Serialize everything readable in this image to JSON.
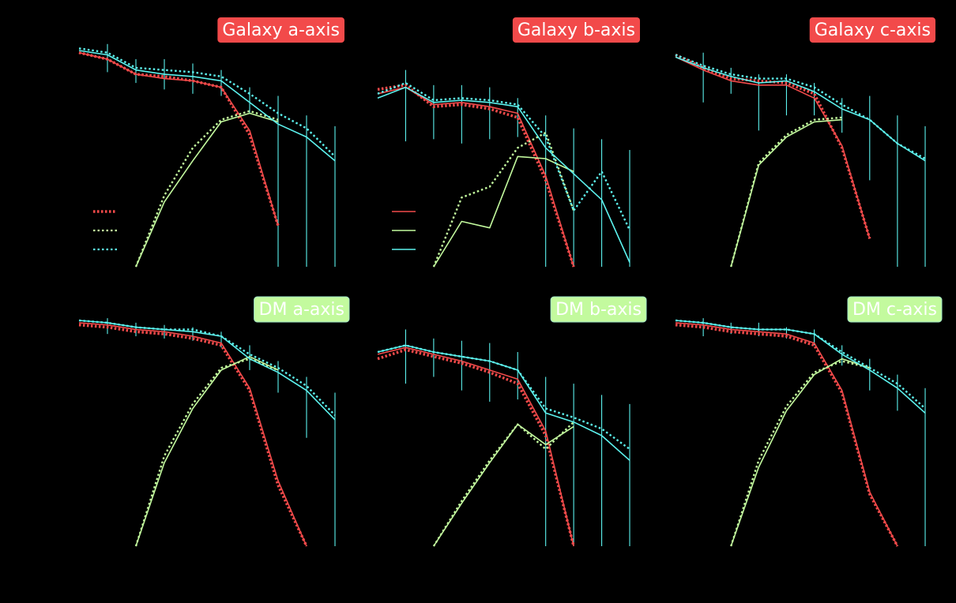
{
  "colors": {
    "background": "#000000",
    "red": "#f24a4a",
    "green": "#c3fa9e",
    "cyan": "#5cf2ee",
    "title_text": "#ffffff"
  },
  "chart_data": [
    {
      "type": "line",
      "title": "Galaxy a-axis",
      "title_color": "red",
      "legend": "dotted",
      "x": [
        0,
        1,
        2,
        3,
        4,
        5,
        6,
        7,
        8,
        9
      ],
      "ylim": [
        0,
        1
      ],
      "series": [
        {
          "color": "red",
          "style": "solid",
          "values": [
            0.99,
            0.96,
            0.89,
            0.87,
            0.86,
            0.83,
            0.63,
            0.19,
            null,
            null
          ]
        },
        {
          "color": "red",
          "style": "dotted",
          "values": [
            0.99,
            0.96,
            0.89,
            0.88,
            0.86,
            0.83,
            0.61,
            0.19,
            null,
            null
          ]
        },
        {
          "color": "green",
          "style": "solid",
          "values": [
            null,
            null,
            0.0,
            0.3,
            0.49,
            0.67,
            0.71,
            0.67,
            null,
            null
          ]
        },
        {
          "color": "green",
          "style": "dotted",
          "values": [
            null,
            null,
            0.0,
            0.33,
            0.55,
            0.68,
            0.72,
            0.68,
            null,
            null
          ]
        },
        {
          "color": "cyan",
          "style": "solid",
          "values": [
            1.0,
            0.98,
            0.91,
            0.89,
            0.88,
            0.86,
            0.76,
            0.66,
            0.6,
            0.49
          ]
        },
        {
          "color": "cyan",
          "style": "dotted",
          "values": [
            1.01,
            0.99,
            0.92,
            0.91,
            0.9,
            0.88,
            0.8,
            0.71,
            0.64,
            0.51
          ]
        }
      ],
      "errorbars": [
        {
          "x": 1,
          "lo": 0.9,
          "hi": 1.03
        },
        {
          "x": 2,
          "lo": 0.85,
          "hi": 0.96
        },
        {
          "x": 3,
          "lo": 0.82,
          "hi": 0.96
        },
        {
          "x": 4,
          "lo": 0.8,
          "hi": 0.94
        },
        {
          "x": 5,
          "lo": 0.79,
          "hi": 0.91
        },
        {
          "x": 6,
          "lo": 0.71,
          "hi": 0.83
        },
        {
          "x": 7,
          "lo": 0.0,
          "hi": 0.79
        },
        {
          "x": 8,
          "lo": 0.0,
          "hi": 0.7
        },
        {
          "x": 9,
          "lo": 0.0,
          "hi": 0.65
        }
      ]
    },
    {
      "type": "line",
      "title": "Galaxy b-axis",
      "title_color": "red",
      "legend": "solid",
      "x": [
        0,
        1,
        2,
        3,
        4,
        5,
        6,
        7,
        8,
        9
      ],
      "ylim": [
        0,
        1
      ],
      "series": [
        {
          "color": "red",
          "style": "solid",
          "values": [
            0.8,
            0.83,
            0.75,
            0.76,
            0.74,
            0.71,
            0.42,
            0.0,
            null,
            null
          ]
        },
        {
          "color": "red",
          "style": "dotted",
          "values": [
            0.82,
            0.84,
            0.74,
            0.75,
            0.73,
            0.69,
            0.4,
            0.0,
            null,
            null
          ]
        },
        {
          "color": "green",
          "style": "solid",
          "values": [
            null,
            null,
            0.0,
            0.21,
            0.18,
            0.51,
            0.5,
            0.44,
            null,
            null
          ]
        },
        {
          "color": "green",
          "style": "dotted",
          "values": [
            null,
            null,
            0.0,
            0.32,
            0.37,
            0.55,
            0.62,
            0.26,
            null,
            null
          ]
        },
        {
          "color": "cyan",
          "style": "solid",
          "values": [
            0.78,
            0.83,
            0.76,
            0.77,
            0.76,
            0.74,
            0.55,
            0.43,
            0.31,
            0.02
          ]
        },
        {
          "color": "cyan",
          "style": "dotted",
          "values": [
            0.8,
            0.85,
            0.77,
            0.78,
            0.77,
            0.75,
            0.6,
            0.26,
            0.44,
            0.17
          ]
        }
      ],
      "errorbars": [
        {
          "x": 1,
          "lo": 0.58,
          "hi": 0.91
        },
        {
          "x": 2,
          "lo": 0.59,
          "hi": 0.84
        },
        {
          "x": 3,
          "lo": 0.57,
          "hi": 0.84
        },
        {
          "x": 4,
          "lo": 0.59,
          "hi": 0.83
        },
        {
          "x": 5,
          "lo": 0.6,
          "hi": 0.78
        },
        {
          "x": 6,
          "lo": 0.0,
          "hi": 0.7
        },
        {
          "x": 7,
          "lo": 0.0,
          "hi": 0.64
        },
        {
          "x": 8,
          "lo": 0.0,
          "hi": 0.59
        },
        {
          "x": 9,
          "lo": 0.0,
          "hi": 0.54
        }
      ]
    },
    {
      "type": "line",
      "title": "Galaxy c-axis",
      "title_color": "red",
      "legend": "none",
      "x": [
        0,
        1,
        2,
        3,
        4,
        5,
        6,
        7,
        8,
        9
      ],
      "ylim": [
        0,
        1
      ],
      "series": [
        {
          "color": "red",
          "style": "solid",
          "values": [
            0.97,
            0.91,
            0.86,
            0.84,
            0.84,
            0.78,
            0.56,
            0.13,
            null,
            null
          ]
        },
        {
          "color": "red",
          "style": "dotted",
          "values": [
            0.98,
            0.92,
            0.87,
            0.86,
            0.85,
            0.8,
            0.55,
            0.13,
            null,
            null
          ]
        },
        {
          "color": "green",
          "style": "solid",
          "values": [
            null,
            null,
            0.0,
            0.47,
            0.6,
            0.67,
            0.68,
            null,
            null,
            null
          ]
        },
        {
          "color": "green",
          "style": "dotted",
          "values": [
            null,
            null,
            0.0,
            0.48,
            0.61,
            0.68,
            0.69,
            null,
            null,
            null
          ]
        },
        {
          "color": "cyan",
          "style": "solid",
          "values": [
            0.97,
            0.92,
            0.88,
            0.85,
            0.86,
            0.81,
            0.73,
            0.68,
            0.57,
            0.49
          ]
        },
        {
          "color": "cyan",
          "style": "dotted",
          "values": [
            0.98,
            0.93,
            0.89,
            0.87,
            0.87,
            0.83,
            0.75,
            0.68,
            0.57,
            0.5
          ]
        }
      ],
      "errorbars": [
        {
          "x": 1,
          "lo": 0.76,
          "hi": 0.99
        },
        {
          "x": 2,
          "lo": 0.8,
          "hi": 0.92
        },
        {
          "x": 3,
          "lo": 0.63,
          "hi": 0.89
        },
        {
          "x": 4,
          "lo": 0.7,
          "hi": 0.89
        },
        {
          "x": 5,
          "lo": 0.7,
          "hi": 0.85
        },
        {
          "x": 6,
          "lo": 0.62,
          "hi": 0.78
        },
        {
          "x": 7,
          "lo": 0.4,
          "hi": 0.79
        },
        {
          "x": 8,
          "lo": 0.0,
          "hi": 0.7
        },
        {
          "x": 9,
          "lo": 0.0,
          "hi": 0.65
        }
      ]
    },
    {
      "type": "line",
      "title": "DM a-axis",
      "title_color": "green",
      "legend": "none",
      "x": [
        0,
        1,
        2,
        3,
        4,
        5,
        6,
        7,
        8,
        9
      ],
      "ylim": [
        0,
        1
      ],
      "series": [
        {
          "color": "red",
          "style": "solid",
          "values": [
            0.99,
            0.98,
            0.96,
            0.95,
            0.93,
            0.9,
            0.7,
            0.29,
            0.0,
            null
          ]
        },
        {
          "color": "red",
          "style": "dotted",
          "values": [
            0.98,
            0.97,
            0.95,
            0.94,
            0.92,
            0.89,
            0.69,
            0.27,
            0.0,
            null
          ]
        },
        {
          "color": "green",
          "style": "solid",
          "values": [
            null,
            null,
            0.0,
            0.37,
            0.61,
            0.78,
            0.84,
            0.78,
            null,
            null
          ]
        },
        {
          "color": "green",
          "style": "dotted",
          "values": [
            null,
            null,
            0.0,
            0.4,
            0.63,
            0.79,
            0.83,
            0.78,
            null,
            null
          ]
        },
        {
          "color": "cyan",
          "style": "solid",
          "values": [
            1.0,
            0.99,
            0.97,
            0.96,
            0.95,
            0.93,
            0.83,
            0.77,
            0.69,
            0.56
          ]
        },
        {
          "color": "cyan",
          "style": "dotted",
          "values": [
            1.0,
            0.99,
            0.97,
            0.96,
            0.96,
            0.93,
            0.85,
            0.79,
            0.71,
            0.58
          ]
        }
      ],
      "errorbars": [
        {
          "x": 1,
          "lo": 0.94,
          "hi": 1.01
        },
        {
          "x": 2,
          "lo": 0.93,
          "hi": 0.99
        },
        {
          "x": 3,
          "lo": 0.92,
          "hi": 0.98
        },
        {
          "x": 4,
          "lo": 0.91,
          "hi": 0.97
        },
        {
          "x": 5,
          "lo": 0.88,
          "hi": 0.95
        },
        {
          "x": 6,
          "lo": 0.78,
          "hi": 0.89
        },
        {
          "x": 7,
          "lo": 0.68,
          "hi": 0.82
        },
        {
          "x": 8,
          "lo": 0.48,
          "hi": 0.75
        },
        {
          "x": 9,
          "lo": 0.0,
          "hi": 0.68
        }
      ]
    },
    {
      "type": "line",
      "title": "DM b-axis",
      "title_color": "green",
      "legend": "none",
      "x": [
        0,
        1,
        2,
        3,
        4,
        5,
        6,
        7,
        8,
        9
      ],
      "ylim": [
        0,
        1
      ],
      "series": [
        {
          "color": "red",
          "style": "solid",
          "values": [
            0.85,
            0.88,
            0.85,
            0.82,
            0.78,
            0.74,
            0.51,
            0.0,
            null,
            null
          ]
        },
        {
          "color": "red",
          "style": "dotted",
          "values": [
            0.83,
            0.87,
            0.84,
            0.81,
            0.77,
            0.72,
            0.49,
            0.0,
            null,
            null
          ]
        },
        {
          "color": "green",
          "style": "solid",
          "values": [
            null,
            null,
            0.0,
            0.19,
            0.37,
            0.54,
            0.45,
            0.53,
            null,
            null
          ]
        },
        {
          "color": "green",
          "style": "dotted",
          "values": [
            null,
            null,
            0.0,
            0.2,
            0.38,
            0.54,
            0.43,
            0.55,
            null,
            null
          ]
        },
        {
          "color": "cyan",
          "style": "solid",
          "values": [
            0.86,
            0.89,
            0.86,
            0.84,
            0.82,
            0.78,
            0.59,
            0.55,
            0.49,
            0.38
          ]
        },
        {
          "color": "cyan",
          "style": "dotted",
          "values": [
            0.86,
            0.89,
            0.86,
            0.84,
            0.82,
            0.78,
            0.61,
            0.57,
            0.52,
            0.43
          ]
        }
      ],
      "errorbars": [
        {
          "x": 1,
          "lo": 0.72,
          "hi": 0.96
        },
        {
          "x": 2,
          "lo": 0.75,
          "hi": 0.92
        },
        {
          "x": 3,
          "lo": 0.69,
          "hi": 0.91
        },
        {
          "x": 4,
          "lo": 0.64,
          "hi": 0.9
        },
        {
          "x": 5,
          "lo": 0.65,
          "hi": 0.86
        },
        {
          "x": 6,
          "lo": 0.0,
          "hi": 0.75
        },
        {
          "x": 7,
          "lo": 0.0,
          "hi": 0.72
        },
        {
          "x": 8,
          "lo": 0.0,
          "hi": 0.67
        },
        {
          "x": 9,
          "lo": 0.0,
          "hi": 0.63
        }
      ]
    },
    {
      "type": "line",
      "title": "DM c-axis",
      "title_color": "green",
      "legend": "none",
      "x": [
        0,
        1,
        2,
        3,
        4,
        5,
        6,
        7,
        8,
        9
      ],
      "ylim": [
        0,
        1
      ],
      "series": [
        {
          "color": "red",
          "style": "solid",
          "values": [
            0.99,
            0.98,
            0.96,
            0.95,
            0.94,
            0.9,
            0.69,
            0.24,
            0.0,
            null
          ]
        },
        {
          "color": "red",
          "style": "dotted",
          "values": [
            0.98,
            0.97,
            0.95,
            0.94,
            0.93,
            0.89,
            0.68,
            0.23,
            0.0,
            null
          ]
        },
        {
          "color": "green",
          "style": "solid",
          "values": [
            null,
            null,
            0.0,
            0.35,
            0.6,
            0.76,
            0.83,
            0.79,
            null,
            null
          ]
        },
        {
          "color": "green",
          "style": "dotted",
          "values": [
            null,
            null,
            0.0,
            0.38,
            0.62,
            0.77,
            0.82,
            0.79,
            null,
            null
          ]
        },
        {
          "color": "cyan",
          "style": "solid",
          "values": [
            1.0,
            0.99,
            0.97,
            0.96,
            0.96,
            0.94,
            0.85,
            0.78,
            0.7,
            0.59
          ]
        },
        {
          "color": "cyan",
          "style": "dotted",
          "values": [
            1.0,
            0.99,
            0.97,
            0.96,
            0.96,
            0.94,
            0.86,
            0.79,
            0.72,
            0.61
          ]
        }
      ],
      "errorbars": [
        {
          "x": 1,
          "lo": 0.93,
          "hi": 1.01
        },
        {
          "x": 2,
          "lo": 0.94,
          "hi": 0.99
        },
        {
          "x": 3,
          "lo": 0.93,
          "hi": 0.99
        },
        {
          "x": 4,
          "lo": 0.92,
          "hi": 0.97
        },
        {
          "x": 5,
          "lo": 0.89,
          "hi": 0.96
        },
        {
          "x": 6,
          "lo": 0.8,
          "hi": 0.89
        },
        {
          "x": 7,
          "lo": 0.69,
          "hi": 0.83
        },
        {
          "x": 8,
          "lo": 0.6,
          "hi": 0.76
        },
        {
          "x": 9,
          "lo": 0.0,
          "hi": 0.7
        }
      ]
    }
  ]
}
